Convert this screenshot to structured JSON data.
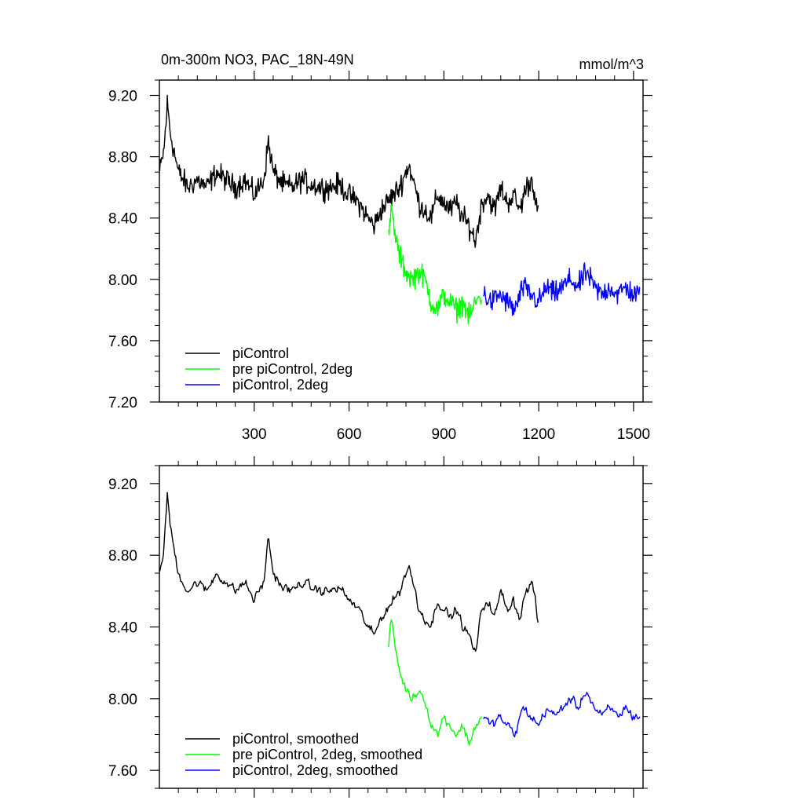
{
  "chart_data": [
    {
      "type": "line",
      "title": "0m-300m NO3, PAC_18N-49N",
      "units": "mmol/m^3",
      "xlim": [
        0,
        1530
      ],
      "ylim": [
        7.2,
        9.3
      ],
      "xticks": [
        300,
        600,
        900,
        1200,
        1500
      ],
      "xtick_labels": [
        "300",
        "600",
        "900",
        "1200",
        "1500"
      ],
      "yticks": [
        7.2,
        7.6,
        8.0,
        8.4,
        8.8,
        9.2
      ],
      "ytick_labels": [
        "7.20",
        "7.60",
        "8.00",
        "8.40",
        "8.80",
        "9.20"
      ],
      "legend": "bottom-left",
      "grid": false,
      "smoothed": false,
      "series": [
        {
          "name": "piControl",
          "color": "#000000",
          "x": [
            1,
            15,
            25,
            35,
            60,
            90,
            120,
            150,
            180,
            210,
            240,
            270,
            300,
            330,
            345,
            360,
            390,
            420,
            450,
            480,
            510,
            540,
            570,
            600,
            630,
            660,
            680,
            700,
            720,
            740,
            760,
            780,
            790,
            800,
            810,
            820,
            840,
            860,
            880,
            900,
            920,
            940,
            960,
            980,
            1000,
            1020,
            1040,
            1060,
            1080,
            1100,
            1120,
            1140,
            1160,
            1180,
            1200
          ],
          "y": [
            8.7,
            8.85,
            9.15,
            8.95,
            8.7,
            8.6,
            8.65,
            8.6,
            8.7,
            8.65,
            8.6,
            8.65,
            8.55,
            8.65,
            8.9,
            8.7,
            8.62,
            8.6,
            8.65,
            8.62,
            8.6,
            8.6,
            8.62,
            8.55,
            8.5,
            8.4,
            8.35,
            8.45,
            8.5,
            8.55,
            8.6,
            8.7,
            8.75,
            8.65,
            8.6,
            8.5,
            8.45,
            8.4,
            8.55,
            8.5,
            8.45,
            8.5,
            8.4,
            8.35,
            8.25,
            8.5,
            8.55,
            8.45,
            8.6,
            8.5,
            8.55,
            8.45,
            8.6,
            8.65,
            8.4
          ]
        },
        {
          "name": "pre piControl, 2deg",
          "color": "#00ff00",
          "x": [
            725,
            735,
            745,
            760,
            780,
            800,
            820,
            840,
            860,
            880,
            900,
            920,
            940,
            960,
            980,
            1000,
            1020
          ],
          "y": [
            8.3,
            8.45,
            8.3,
            8.15,
            8.05,
            8.0,
            8.05,
            8.0,
            7.85,
            7.8,
            7.9,
            7.85,
            7.8,
            7.85,
            7.75,
            7.85,
            7.9
          ]
        },
        {
          "name": "piControl, 2deg",
          "color": "#0000ff",
          "x": [
            1025,
            1050,
            1075,
            1100,
            1125,
            1150,
            1175,
            1200,
            1225,
            1250,
            1275,
            1300,
            1325,
            1350,
            1375,
            1400,
            1425,
            1450,
            1475,
            1500,
            1520
          ],
          "y": [
            7.9,
            7.85,
            7.9,
            7.85,
            7.8,
            7.95,
            7.9,
            7.85,
            7.95,
            7.9,
            7.95,
            8.0,
            7.95,
            8.05,
            7.95,
            7.9,
            7.95,
            7.9,
            7.95,
            7.9,
            7.9
          ]
        }
      ]
    },
    {
      "type": "line",
      "xlim": [
        0,
        1530
      ],
      "ylim": [
        7.5,
        9.3
      ],
      "xticks": [
        300,
        600,
        900,
        1200,
        1500
      ],
      "yticks": [
        7.6,
        8.0,
        8.4,
        8.8,
        9.2
      ],
      "ytick_labels": [
        "7.60",
        "8.00",
        "8.40",
        "8.80",
        "9.20"
      ],
      "legend": "bottom-left",
      "grid": false,
      "smoothed": true,
      "series": [
        {
          "name": "piControl, smoothed",
          "color": "#000000",
          "x": [
            1,
            15,
            25,
            35,
            60,
            90,
            120,
            150,
            180,
            210,
            240,
            270,
            300,
            330,
            345,
            360,
            390,
            420,
            450,
            480,
            510,
            540,
            570,
            600,
            630,
            660,
            680,
            700,
            720,
            740,
            760,
            780,
            790,
            800,
            810,
            820,
            840,
            860,
            880,
            900,
            920,
            940,
            960,
            980,
            1000,
            1020,
            1040,
            1060,
            1080,
            1100,
            1120,
            1140,
            1160,
            1180,
            1200
          ],
          "y": [
            8.7,
            8.85,
            9.15,
            8.95,
            8.7,
            8.6,
            8.65,
            8.6,
            8.7,
            8.65,
            8.6,
            8.65,
            8.55,
            8.65,
            8.9,
            8.7,
            8.62,
            8.6,
            8.65,
            8.62,
            8.6,
            8.6,
            8.62,
            8.55,
            8.5,
            8.4,
            8.35,
            8.45,
            8.5,
            8.55,
            8.6,
            8.7,
            8.75,
            8.65,
            8.6,
            8.5,
            8.45,
            8.4,
            8.55,
            8.5,
            8.45,
            8.5,
            8.4,
            8.35,
            8.25,
            8.5,
            8.55,
            8.45,
            8.6,
            8.5,
            8.55,
            8.45,
            8.6,
            8.65,
            8.4
          ]
        },
        {
          "name": "pre piControl, 2deg, smoothed",
          "color": "#00ff00",
          "x": [
            725,
            735,
            745,
            760,
            780,
            800,
            820,
            840,
            860,
            880,
            900,
            920,
            940,
            960,
            980,
            1000,
            1020
          ],
          "y": [
            8.3,
            8.45,
            8.3,
            8.15,
            8.05,
            8.0,
            8.05,
            8.0,
            7.85,
            7.8,
            7.9,
            7.85,
            7.8,
            7.85,
            7.75,
            7.85,
            7.9
          ]
        },
        {
          "name": "piControl, 2deg, smoothed",
          "color": "#0000ff",
          "x": [
            1025,
            1050,
            1075,
            1100,
            1125,
            1150,
            1175,
            1200,
            1225,
            1250,
            1275,
            1300,
            1325,
            1350,
            1375,
            1400,
            1425,
            1450,
            1475,
            1500,
            1520
          ],
          "y": [
            7.9,
            7.85,
            7.9,
            7.85,
            7.8,
            7.95,
            7.9,
            7.85,
            7.95,
            7.9,
            7.95,
            8.0,
            7.95,
            8.05,
            7.95,
            7.9,
            7.95,
            7.9,
            7.95,
            7.9,
            7.9
          ]
        }
      ]
    }
  ]
}
